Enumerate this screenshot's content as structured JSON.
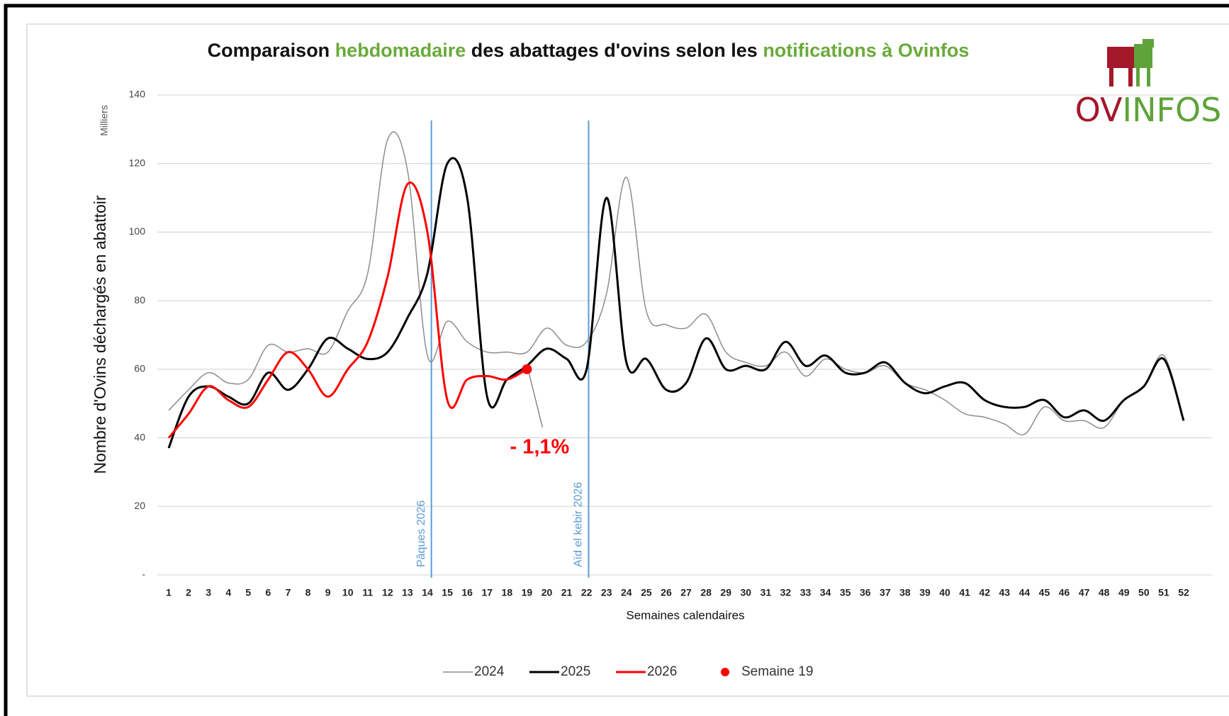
{
  "chart_data": {
    "type": "line",
    "title_parts": [
      {
        "text": "Comparaison ",
        "color": "#111111"
      },
      {
        "text": "hebdomadaire",
        "color": "#6aaa3a"
      },
      {
        "text": " des abattages d'ovins selon les ",
        "color": "#111111"
      },
      {
        "text": "notifications à Ovinfos",
        "color": "#6aaa3a"
      }
    ],
    "logo_parts": [
      {
        "text": "OV",
        "color": "#a3182a"
      },
      {
        "text": "INFOS",
        "color": "#5fa33a"
      }
    ],
    "y_label": "Nombre d'Ovins déchargés en abattoir",
    "y_unit": "Milliers",
    "x_label": "Semaines calendaires",
    "x": [
      1,
      2,
      3,
      4,
      5,
      6,
      7,
      8,
      9,
      10,
      11,
      12,
      13,
      14,
      15,
      16,
      17,
      18,
      19,
      20,
      21,
      22,
      23,
      24,
      25,
      26,
      27,
      28,
      29,
      30,
      31,
      32,
      33,
      34,
      35,
      36,
      37,
      38,
      39,
      40,
      41,
      42,
      43,
      44,
      45,
      46,
      47,
      48,
      49,
      50,
      51,
      52
    ],
    "xlim": [
      1,
      52
    ],
    "xticks": [
      1,
      2,
      3,
      4,
      5,
      6,
      7,
      8,
      9,
      10,
      11,
      12,
      13,
      14,
      15,
      16,
      17,
      18,
      19,
      20,
      21,
      22,
      23,
      24,
      25,
      26,
      27,
      28,
      29,
      30,
      31,
      32,
      33,
      34,
      35,
      36,
      37,
      38,
      39,
      40,
      41,
      42,
      43,
      44,
      45,
      46,
      47,
      48,
      49,
      50,
      51,
      52
    ],
    "ylim": [
      0,
      140
    ],
    "yticks": [
      {
        "value": 0,
        "label": "-"
      },
      20,
      40,
      60,
      80,
      100,
      120,
      140
    ],
    "grid": true,
    "series": [
      {
        "name": "2024",
        "color": "#8c8c8c",
        "width": 1.5,
        "values": [
          48,
          54,
          59,
          56,
          57,
          67,
          65,
          66,
          65,
          77,
          88,
          127,
          118,
          64,
          74,
          68,
          65,
          65,
          65,
          72,
          67,
          68,
          82,
          116,
          77,
          73,
          72,
          76,
          65,
          62,
          61,
          65,
          58,
          63,
          60,
          59,
          61,
          56,
          54,
          51,
          47,
          46,
          44,
          41,
          49,
          45,
          45,
          43,
          51,
          55,
          64,
          45
        ]
      },
      {
        "name": "2025",
        "color": "#000000",
        "width": 3,
        "values": [
          37,
          52,
          55,
          52,
          50,
          59,
          54,
          60,
          69,
          66,
          63,
          65,
          75,
          88,
          120,
          110,
          52,
          57,
          61,
          66,
          63,
          60,
          110,
          62,
          63,
          54,
          56,
          69,
          60,
          61,
          60,
          68,
          61,
          64,
          59,
          59,
          62,
          56,
          53,
          55,
          56,
          51,
          49,
          49,
          51,
          46,
          48,
          45,
          51,
          55,
          63,
          45
        ]
      },
      {
        "name": "2026",
        "color": "#ff0000",
        "width": 3,
        "values": [
          40,
          47,
          55,
          51,
          49,
          57,
          65,
          60,
          52,
          60,
          68,
          87,
          114,
          100,
          51,
          57,
          58,
          57,
          60,
          null,
          null,
          null,
          null,
          null,
          null,
          null,
          null,
          null,
          null,
          null,
          null,
          null,
          null,
          null,
          null,
          null,
          null,
          null,
          null,
          null,
          null,
          null,
          null,
          null,
          null,
          null,
          null,
          null,
          null,
          null,
          null,
          null
        ]
      }
    ],
    "highlight": {
      "name": "Semaine 19",
      "x": 19,
      "value": 60,
      "color": "#ff0000",
      "annotation": "- 1,1%"
    },
    "events": [
      {
        "x": 14.2,
        "label": "Pâques 2026",
        "color": "#5b9bd5"
      },
      {
        "x": 22.1,
        "label": "Aïd el kebir 2026",
        "color": "#5b9bd5"
      }
    ]
  }
}
